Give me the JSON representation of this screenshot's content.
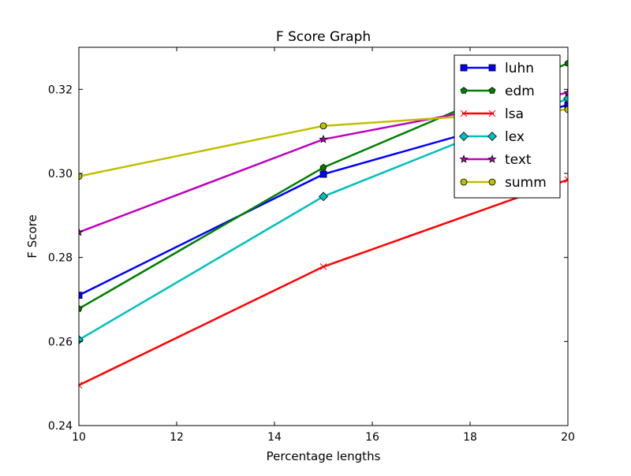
{
  "chart_data": {
    "type": "line",
    "title": "F Score Graph",
    "xlabel": "Percentage lengths",
    "ylabel": "F Score",
    "xlim": [
      10,
      20
    ],
    "ylim": [
      0.24,
      0.33
    ],
    "xticks": [
      10,
      12,
      14,
      16,
      18,
      20
    ],
    "xtick_labels": [
      "10",
      "12",
      "14",
      "16",
      "18",
      "20"
    ],
    "yticks": [
      0.24,
      0.26,
      0.28,
      0.3,
      0.32
    ],
    "ytick_labels": [
      "0.24",
      "0.26",
      "0.28",
      "0.30",
      "0.32"
    ],
    "grid": false,
    "legend_position": "top-right",
    "x": [
      10,
      15,
      20
    ],
    "series": [
      {
        "name": "luhn",
        "values": [
          0.271,
          0.2998,
          0.3163
        ],
        "color": "#0000ff",
        "marker": "square"
      },
      {
        "name": "edm",
        "values": [
          0.2678,
          0.3014,
          0.3262
        ],
        "color": "#008000",
        "marker": "pentagon"
      },
      {
        "name": "lsa",
        "values": [
          0.2496,
          0.2778,
          0.2985
        ],
        "color": "#ff0000",
        "marker": "x"
      },
      {
        "name": "lex",
        "values": [
          0.2604,
          0.2945,
          0.3178
        ],
        "color": "#00bfbf",
        "marker": "diamond"
      },
      {
        "name": "text",
        "values": [
          0.286,
          0.3081,
          0.3192
        ],
        "color": "#bf00bf",
        "marker": "star"
      },
      {
        "name": "summ",
        "values": [
          0.2993,
          0.3113,
          0.3152
        ],
        "color": "#bfbf00",
        "marker": "circle"
      }
    ]
  }
}
